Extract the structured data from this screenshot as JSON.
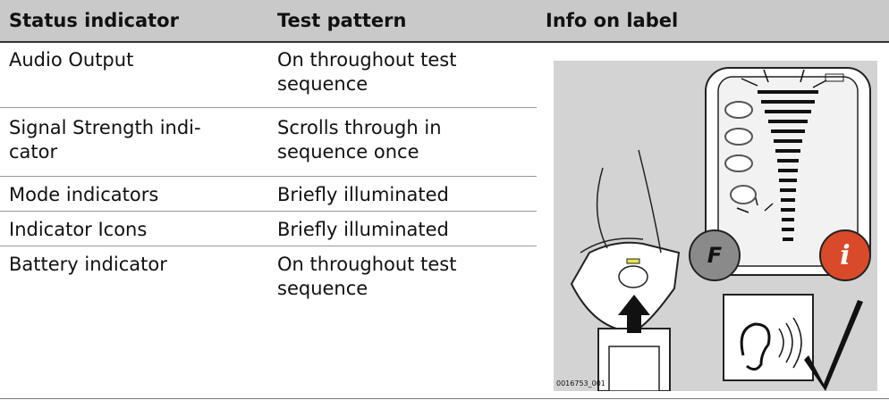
{
  "table": {
    "header": [
      "Status indicator",
      "Test pattern",
      "Info on label"
    ],
    "rows": [
      [
        "Audio Output",
        "On throughout test\nsequence"
      ],
      [
        "Signal Strength indi-\ncator",
        "Scrolls through in\nsequence once"
      ],
      [
        "Mode indicators",
        "Briefly illuminated"
      ],
      [
        "Indicator Icons",
        "Briefly illuminated"
      ],
      [
        "Battery indicator",
        "On throughout test\nsequence"
      ]
    ]
  },
  "figure": {
    "id": "0016753_001",
    "button_f": "F",
    "button_i": "i"
  }
}
